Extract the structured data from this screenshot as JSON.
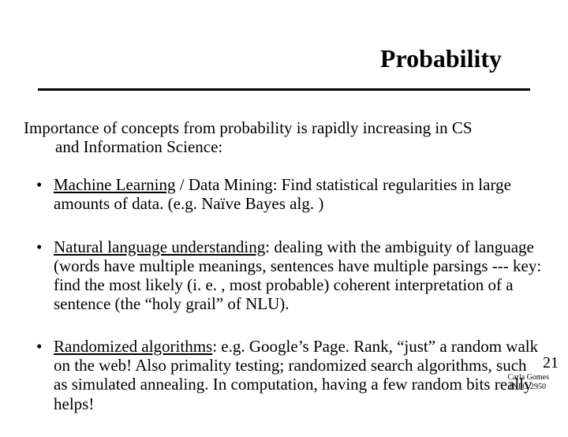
{
  "title": "Probability",
  "intro_line1": "Importance of concepts from probability is rapidly increasing in CS",
  "intro_line2": "and Information Science:",
  "bullets": [
    {
      "underline": "Machine Learning",
      "rest": " / Data Mining: Find statistical regularities in large amounts of data. (e.g. Naïve Bayes alg. )"
    },
    {
      "underline": "Natural language understanding",
      "rest": ": dealing with the ambiguity of language (words have multiple meanings, sentences have multiple parsings --- key: find the most likely (i. e. , most probable) coherent interpretation of a sentence (the “holy grail” of NLU)."
    },
    {
      "underline": "Randomized algorithms",
      "rest": ": e.g. Google’s Page. Rank, “just” a random walk on the web! Also primality testing; randomized search algorithms, such as simulated annealing. In computation, having a few random bits really helps!"
    }
  ],
  "page_number": "21",
  "footer_name": "Carla Gomes",
  "footer_course": "INFO 2950"
}
